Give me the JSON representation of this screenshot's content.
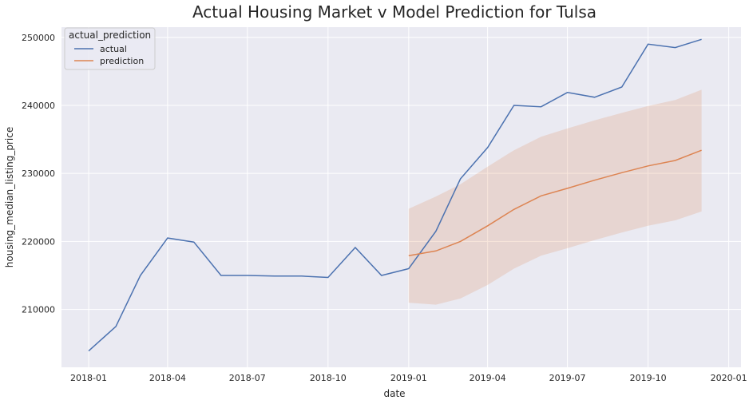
{
  "chart_data": {
    "type": "line",
    "title": "Actual Housing Market v Model Prediction for Tulsa",
    "xlabel": "date",
    "ylabel": "housing_median_listing_price",
    "x_ticks": [
      "2018-01",
      "2018-04",
      "2018-07",
      "2018-10",
      "2019-01",
      "2019-04",
      "2019-07",
      "2019-10",
      "2020-01"
    ],
    "y_ticks": [
      210000,
      220000,
      230000,
      240000,
      250000
    ],
    "y_tick_labels": [
      "210000",
      "220000",
      "230000",
      "240000",
      "250000"
    ],
    "xlim": [
      "2017-12-01",
      "2020-01-15"
    ],
    "ylim": [
      201500,
      251500
    ],
    "grid": true,
    "legend": {
      "title": "actual_prediction",
      "placement": "top-left"
    },
    "colors": {
      "background": "#eaeaf2",
      "grid": "#ffffff",
      "actual": "#4c72b0",
      "prediction": "#dd8452",
      "band": "#dd8452"
    },
    "series": [
      {
        "name": "actual",
        "x": [
          "2018-01-01",
          "2018-02-01",
          "2018-03-01",
          "2018-04-01",
          "2018-05-01",
          "2018-06-01",
          "2018-07-01",
          "2018-08-01",
          "2018-09-01",
          "2018-10-01",
          "2018-11-01",
          "2018-12-01",
          "2019-01-01",
          "2019-02-01",
          "2019-03-01",
          "2019-04-01",
          "2019-05-01",
          "2019-06-01",
          "2019-07-01",
          "2019-08-01",
          "2019-09-01",
          "2019-10-01",
          "2019-11-01",
          "2019-12-01"
        ],
        "y": [
          203900,
          207500,
          215000,
          220500,
          219900,
          215000,
          215000,
          214900,
          214900,
          214700,
          219100,
          215000,
          216000,
          221500,
          229200,
          233800,
          240000,
          239800,
          241900,
          241200,
          242700,
          249000,
          248500,
          249700
        ]
      },
      {
        "name": "prediction",
        "x": [
          "2019-01-01",
          "2019-02-01",
          "2019-03-01",
          "2019-04-01",
          "2019-05-01",
          "2019-06-01",
          "2019-07-01",
          "2019-08-01",
          "2019-09-01",
          "2019-10-01",
          "2019-11-01",
          "2019-12-01"
        ],
        "y": [
          217900,
          218600,
          220000,
          222300,
          224700,
          226700,
          227800,
          229000,
          230100,
          231100,
          231900,
          233400
        ],
        "lower": [
          211000,
          210700,
          211600,
          213600,
          216000,
          217900,
          219000,
          220200,
          221300,
          222300,
          223100,
          224400
        ],
        "upper": [
          224800,
          226600,
          228400,
          231000,
          233400,
          235400,
          236600,
          237800,
          238900,
          239900,
          240800,
          242300
        ]
      }
    ]
  }
}
